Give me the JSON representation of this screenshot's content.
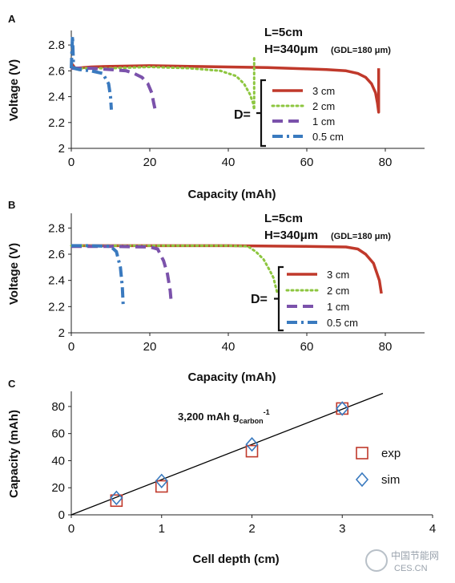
{
  "figure": {
    "watermark_text": "中国节能网",
    "watermark_url": "CES.CN"
  },
  "chart_data": [
    {
      "panel": "A",
      "type": "line",
      "xlabel": "Capacity (mAh)",
      "ylabel": "Voltage (V)",
      "xlim": [
        0,
        90
      ],
      "ylim": [
        2,
        2.9
      ],
      "xticks": [
        0,
        20,
        40,
        60,
        80
      ],
      "yticks": [
        2,
        2.2,
        2.4,
        2.6,
        2.8
      ],
      "annotation_lines": [
        "L=5cm",
        "H=340μm"
      ],
      "annotation_small": "(GDL=180 μm)",
      "legend_title": "D=",
      "legend_placement": "right",
      "grid": false,
      "series": [
        {
          "name": "3 cm",
          "color": "#c0392b",
          "dash": "solid",
          "x": [
            0,
            1,
            5,
            10,
            20,
            30,
            40,
            50,
            60,
            65,
            70,
            73,
            75,
            76.5,
            77.5,
            78,
            78.3,
            78.3
          ],
          "y": [
            2.66,
            2.62,
            2.63,
            2.635,
            2.64,
            2.635,
            2.63,
            2.625,
            2.615,
            2.61,
            2.6,
            2.58,
            2.55,
            2.5,
            2.43,
            2.35,
            2.28,
            2.62
          ]
        },
        {
          "name": "2 cm",
          "color": "#8dc63f",
          "dash": "dot",
          "x": [
            0,
            2,
            10,
            20,
            30,
            38,
            42,
            44,
            45.5,
            46.3,
            46.6,
            46.6
          ],
          "y": [
            2.63,
            2.62,
            2.62,
            2.63,
            2.62,
            2.6,
            2.56,
            2.5,
            2.42,
            2.35,
            2.3,
            2.72
          ]
        },
        {
          "name": "1 cm",
          "color": "#7b52ab",
          "dash": "dash",
          "x": [
            0,
            5,
            10,
            14,
            16,
            18,
            19.5,
            20.5,
            21,
            21.5
          ],
          "y": [
            2.62,
            2.62,
            2.61,
            2.6,
            2.58,
            2.55,
            2.5,
            2.43,
            2.35,
            2.28
          ]
        },
        {
          "name": "0.5 cm",
          "color": "#3a7abf",
          "dash": "dashdot",
          "x": [
            0,
            0.3,
            0.6,
            2,
            5,
            8,
            9.5,
            10,
            10.2
          ],
          "y": [
            2.62,
            2.87,
            2.62,
            2.61,
            2.6,
            2.58,
            2.5,
            2.4,
            2.3
          ]
        }
      ]
    },
    {
      "panel": "B",
      "type": "line",
      "xlabel": "Capacity (mAh)",
      "ylabel": "Voltage (V)",
      "xlim": [
        0,
        90
      ],
      "ylim": [
        2,
        2.9
      ],
      "xticks": [
        0,
        20,
        40,
        60,
        80
      ],
      "yticks": [
        2,
        2.2,
        2.4,
        2.6,
        2.8
      ],
      "annotation_lines": [
        "L=5cm",
        "H=340μm"
      ],
      "annotation_small": "(GDL=180 μm)",
      "legend_title": "D=",
      "legend_placement": "right",
      "grid": false,
      "series": [
        {
          "name": "3 cm",
          "color": "#c0392b",
          "dash": "solid",
          "x": [
            0,
            20,
            40,
            60,
            70,
            73,
            75,
            77,
            78.5,
            79
          ],
          "y": [
            2.665,
            2.665,
            2.665,
            2.66,
            2.655,
            2.64,
            2.6,
            2.53,
            2.4,
            2.3
          ]
        },
        {
          "name": "2 cm",
          "color": "#8dc63f",
          "dash": "dot",
          "x": [
            0,
            20,
            40,
            45,
            47,
            49,
            50.5,
            51.5,
            52,
            52.5
          ],
          "y": [
            2.665,
            2.665,
            2.665,
            2.66,
            2.62,
            2.56,
            2.48,
            2.42,
            2.36,
            2.3
          ]
        },
        {
          "name": "1 cm",
          "color": "#7b52ab",
          "dash": "dash",
          "x": [
            0,
            10,
            20,
            22,
            23.5,
            24.5,
            25.2,
            25.5
          ],
          "y": [
            2.66,
            2.66,
            2.655,
            2.64,
            2.55,
            2.45,
            2.32,
            2.22
          ]
        },
        {
          "name": "0.5 cm",
          "color": "#3a7abf",
          "dash": "dashdot",
          "x": [
            0,
            5,
            10,
            11.5,
            12.5,
            13,
            13.2
          ],
          "y": [
            2.665,
            2.665,
            2.66,
            2.62,
            2.5,
            2.35,
            2.22
          ]
        }
      ]
    },
    {
      "panel": "C",
      "type": "scatter",
      "xlabel": "Cell depth (cm)",
      "ylabel": "Capacity (mAh)",
      "xlim": [
        0,
        4
      ],
      "ylim": [
        0,
        90
      ],
      "xticks": [
        0,
        1,
        2,
        3,
        4
      ],
      "yticks": [
        0,
        20,
        40,
        60,
        80
      ],
      "annotation_main": "3,200 mAh g",
      "annotation_sub": "carbon",
      "annotation_sup": "-1",
      "legend_placement": "right",
      "grid": false,
      "fit_line": {
        "slope": 26.0,
        "intercept": 0,
        "x_range": [
          0,
          3.45
        ],
        "color": "#000000"
      },
      "series": [
        {
          "name": "exp",
          "marker": "square",
          "color": "#c0392b",
          "x": [
            0.5,
            1,
            2,
            3
          ],
          "y": [
            10.5,
            21,
            47,
            78.5
          ]
        },
        {
          "name": "sim",
          "marker": "diamond",
          "color": "#3a7abf",
          "x": [
            0.5,
            1,
            2,
            3
          ],
          "y": [
            12.5,
            25,
            52,
            78.5
          ]
        }
      ]
    }
  ]
}
